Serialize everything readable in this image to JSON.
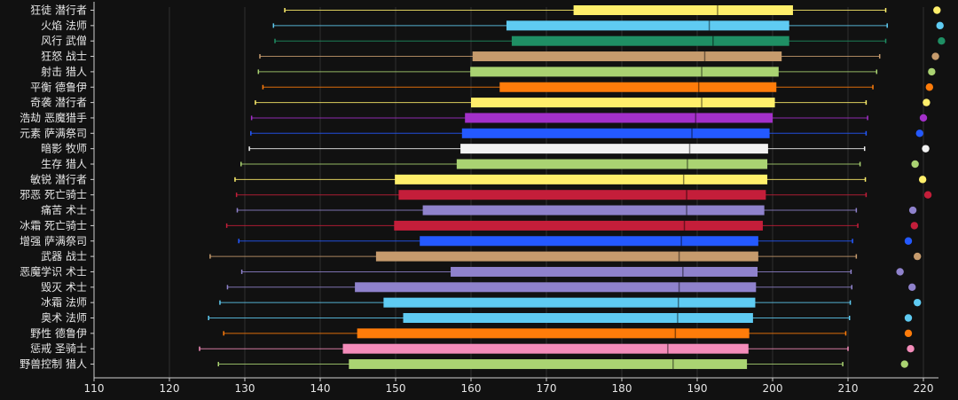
{
  "chart_data": {
    "type": "box",
    "title": "",
    "xlabel": "",
    "ylabel": "",
    "xlim": [
      110,
      222
    ],
    "x_ticks": [
      110,
      120,
      130,
      140,
      150,
      160,
      170,
      180,
      190,
      200,
      210,
      220
    ],
    "grid": "vertical",
    "categories": [
      {
        "label": "狂徒 潜行者",
        "min": 135.3,
        "q1": 173.6,
        "median": 192.7,
        "q3": 202.7,
        "max": 215.0,
        "point": 221.8,
        "color": "#ffef6b"
      },
      {
        "label": "火焰 法师",
        "min": 133.8,
        "q1": 164.7,
        "median": 191.6,
        "q3": 202.2,
        "max": 215.2,
        "point": 222.2,
        "color": "#5fcbf2"
      },
      {
        "label": "风行 武僧",
        "min": 134.0,
        "q1": 165.4,
        "median": 192.1,
        "q3": 202.2,
        "max": 215.0,
        "point": 222.4,
        "color": "#1f8f64"
      },
      {
        "label": "狂怒 战士",
        "min": 132.0,
        "q1": 160.2,
        "median": 191.0,
        "q3": 201.2,
        "max": 214.2,
        "point": 221.6,
        "color": "#c69b6d"
      },
      {
        "label": "射击 猎人",
        "min": 131.8,
        "q1": 159.9,
        "median": 190.6,
        "q3": 200.8,
        "max": 213.8,
        "point": 221.1,
        "color": "#aad372"
      },
      {
        "label": "平衡 德鲁伊",
        "min": 132.4,
        "q1": 163.8,
        "median": 190.2,
        "q3": 200.5,
        "max": 213.3,
        "point": 220.8,
        "color": "#ff7c0a"
      },
      {
        "label": "奇袭 潜行者",
        "min": 131.4,
        "q1": 160.0,
        "median": 190.6,
        "q3": 200.3,
        "max": 212.4,
        "point": 220.4,
        "color": "#ffef6b"
      },
      {
        "label": "浩劫 恶魔猎手",
        "min": 130.9,
        "q1": 159.2,
        "median": 189.8,
        "q3": 200.0,
        "max": 212.6,
        "point": 220.0,
        "color": "#a330c9"
      },
      {
        "label": "元素 萨满祭司",
        "min": 130.8,
        "q1": 158.8,
        "median": 189.3,
        "q3": 199.6,
        "max": 212.4,
        "point": 219.5,
        "color": "#2459ff"
      },
      {
        "label": "暗影 牧师",
        "min": 130.6,
        "q1": 158.6,
        "median": 189.0,
        "q3": 199.4,
        "max": 212.2,
        "point": 220.3,
        "color": "#f2f2f2"
      },
      {
        "label": "生存 猎人",
        "min": 129.5,
        "q1": 158.1,
        "median": 188.7,
        "q3": 199.3,
        "max": 211.6,
        "point": 218.9,
        "color": "#aad372"
      },
      {
        "label": "敏锐 潜行者",
        "min": 128.7,
        "q1": 149.9,
        "median": 188.2,
        "q3": 199.3,
        "max": 212.3,
        "point": 219.9,
        "color": "#ffef6b"
      },
      {
        "label": "邪恶 死亡骑士",
        "min": 128.9,
        "q1": 150.4,
        "median": 188.6,
        "q3": 199.1,
        "max": 212.4,
        "point": 220.6,
        "color": "#c41e3a"
      },
      {
        "label": "痛苦 术士",
        "min": 129.0,
        "q1": 153.6,
        "median": 188.6,
        "q3": 198.9,
        "max": 211.1,
        "point": 218.6,
        "color": "#8f82cc"
      },
      {
        "label": "冰霜 死亡骑士",
        "min": 127.6,
        "q1": 149.8,
        "median": 188.3,
        "q3": 198.7,
        "max": 211.3,
        "point": 218.8,
        "color": "#c41e3a"
      },
      {
        "label": "增强 萨满祭司",
        "min": 129.2,
        "q1": 153.2,
        "median": 187.9,
        "q3": 198.1,
        "max": 210.6,
        "point": 218.0,
        "color": "#2459ff"
      },
      {
        "label": "武器 战士",
        "min": 125.4,
        "q1": 147.4,
        "median": 187.6,
        "q3": 198.1,
        "max": 211.1,
        "point": 219.2,
        "color": "#c69b6d"
      },
      {
        "label": "恶魔学识 术士",
        "min": 129.6,
        "q1": 157.3,
        "median": 188.1,
        "q3": 198.0,
        "max": 210.4,
        "point": 216.9,
        "color": "#8f82cc"
      },
      {
        "label": "毁灭 术士",
        "min": 127.7,
        "q1": 144.6,
        "median": 187.6,
        "q3": 197.8,
        "max": 210.5,
        "point": 218.5,
        "color": "#8f82cc"
      },
      {
        "label": "冰霜 法师",
        "min": 126.7,
        "q1": 148.4,
        "median": 187.5,
        "q3": 197.7,
        "max": 210.3,
        "point": 219.2,
        "color": "#5fcbf2"
      },
      {
        "label": "奥术 法师",
        "min": 125.2,
        "q1": 151.0,
        "median": 187.4,
        "q3": 197.4,
        "max": 210.2,
        "point": 218.0,
        "color": "#5fcbf2"
      },
      {
        "label": "野性 德鲁伊",
        "min": 127.2,
        "q1": 144.9,
        "median": 187.1,
        "q3": 196.9,
        "max": 209.7,
        "point": 218.0,
        "color": "#ff7c0a"
      },
      {
        "label": "惩戒 圣骑士",
        "min": 124.0,
        "q1": 143.0,
        "median": 186.1,
        "q3": 196.8,
        "max": 210.0,
        "point": 218.3,
        "color": "#f48cba"
      },
      {
        "label": "野兽控制 猎人",
        "min": 126.5,
        "q1": 143.8,
        "median": 186.8,
        "q3": 196.6,
        "max": 209.3,
        "point": 217.5,
        "color": "#aad372"
      }
    ]
  }
}
